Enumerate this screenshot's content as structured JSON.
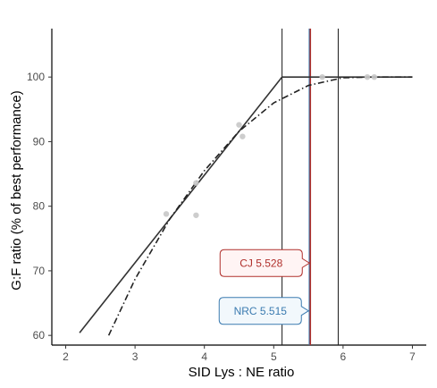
{
  "chart_data": {
    "type": "scatter",
    "xlabel": "SID Lys : NE ratio",
    "ylabel": "G:F ratio (% of best performance)",
    "xlim": [
      1.8,
      7.2
    ],
    "ylim": [
      58.5,
      107.5
    ],
    "x_ticks": [
      2,
      3,
      4,
      5,
      6,
      7
    ],
    "y_ticks": [
      60,
      70,
      80,
      90,
      100
    ],
    "grid": false,
    "points": [
      {
        "x": 3.45,
        "y": 78.8
      },
      {
        "x": 3.88,
        "y": 78.6
      },
      {
        "x": 3.88,
        "y": 83.6
      },
      {
        "x": 4.5,
        "y": 92.6
      },
      {
        "x": 4.55,
        "y": 90.8
      },
      {
        "x": 5.7,
        "y": 100.0
      },
      {
        "x": 6.35,
        "y": 100.0
      },
      {
        "x": 6.45,
        "y": 100.0
      }
    ],
    "series": [
      {
        "line_style": "solid",
        "color": "#333333",
        "x": [
          2.2,
          5.12,
          7.0
        ],
        "y": [
          60.4,
          100.0,
          100.0
        ]
      },
      {
        "line_style": "dashdot",
        "color": "#222222",
        "x": [
          2.62,
          3.0,
          3.5,
          4.0,
          4.5,
          5.0,
          5.5,
          6.0,
          6.5,
          7.0
        ],
        "y": [
          60.0,
          68.7,
          78.0,
          85.5,
          91.6,
          96.0,
          98.7,
          99.9,
          100.0,
          100.0
        ]
      }
    ],
    "vlines": [
      {
        "x": 5.12,
        "color": "#1a1a1a"
      },
      {
        "x": 5.515,
        "color": "#3b7bb0"
      },
      {
        "x": 5.528,
        "color": "#b0302c"
      },
      {
        "x": 5.93,
        "color": "#1a1a1a"
      }
    ],
    "annotations": [
      {
        "label": "CJ 5.528",
        "x": 5.528,
        "y": 71.2,
        "text_color": "#b0302c",
        "border_color": "#b0302c",
        "fill": "#fff4f4"
      },
      {
        "label": "NRC 5.515",
        "x": 5.515,
        "y": 63.8,
        "text_color": "#3b7bb0",
        "border_color": "#3b7bb0",
        "fill": "#f2f8fc"
      }
    ],
    "point_color": "#c8c8c8"
  }
}
